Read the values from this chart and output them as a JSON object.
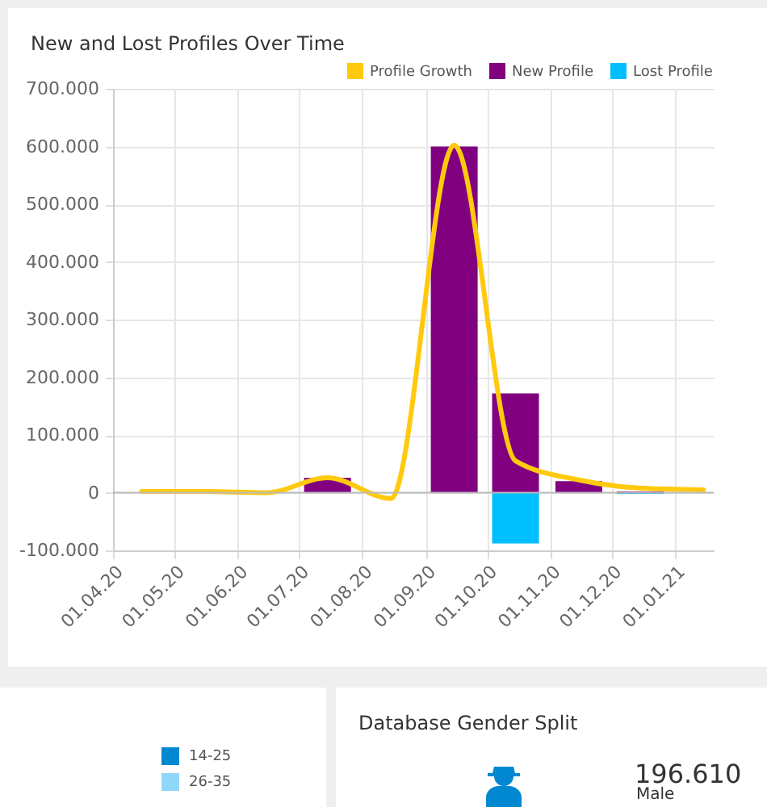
{
  "chart_data": [
    {
      "type": "bar",
      "title": "New and Lost Profiles Over Time",
      "x": [
        "2020-04-15",
        "2020-05-15",
        "2020-06-15",
        "2020-07-15",
        "2020-08-15",
        "2020-09-15",
        "2020-10-15",
        "2020-11-15",
        "2020-12-15",
        "2021-01-15"
      ],
      "series": [
        {
          "name": "New Profile",
          "color": "#800080",
          "values": [
            0,
            0,
            0,
            26000,
            0,
            600000,
            172000,
            20000,
            2000,
            null
          ]
        },
        {
          "name": "Lost Profile",
          "color": "#00bfff",
          "values": [
            0,
            0,
            0,
            0,
            0,
            0,
            -88000,
            0,
            -2000,
            null
          ]
        },
        {
          "name": "Profile Growth",
          "type": "line",
          "color": "#ffc90e",
          "values": [
            2000,
            2000,
            0,
            26000,
            -10000,
            602000,
            55000,
            22000,
            8000,
            5000
          ]
        }
      ],
      "ylim": [
        -100000,
        700000
      ],
      "yticks": [
        {
          "value": -100000,
          "label": "-100.000"
        },
        0,
        {
          "value": 100000,
          "label": "100.000"
        },
        {
          "value": 200000,
          "label": "200.000"
        },
        {
          "value": 300000,
          "label": "300.000"
        },
        {
          "value": 400000,
          "label": "400.000"
        },
        {
          "value": 500000,
          "label": "500.000"
        },
        {
          "value": 600000,
          "label": "600.000"
        },
        {
          "value": 700000,
          "label": "700.000"
        }
      ],
      "xlim": [
        "2020-04-01",
        "2021-01-20"
      ],
      "xticks": [
        {
          "value": "2020-04-01",
          "label": "01.04.20"
        },
        {
          "value": "2020-05-01",
          "label": "01.05.20"
        },
        {
          "value": "2020-06-01",
          "label": "01.06.20"
        },
        {
          "value": "2020-07-01",
          "label": "01.07.20"
        },
        {
          "value": "2020-08-01",
          "label": "01.08.20"
        },
        {
          "value": "2020-09-01",
          "label": "01.09.20"
        },
        {
          "value": "2020-10-01",
          "label": "01.10.20"
        },
        {
          "value": "2020-11-01",
          "label": "01.11.20"
        },
        {
          "value": "2020-12-01",
          "label": "01.12.20"
        },
        {
          "value": "2021-01-01",
          "label": "01.01.21"
        }
      ],
      "grid": true,
      "legend": "top",
      "line_style": "solid",
      "marker": "none"
    },
    {
      "type": "other",
      "annotations": [
        "14-25",
        "26-35"
      ],
      "colors": [
        "#0288d1",
        "#90d8fb"
      ]
    },
    {
      "type": "other",
      "title": "Database Gender Split",
      "annotations": [
        "196.610",
        "Male"
      ]
    }
  ]
}
